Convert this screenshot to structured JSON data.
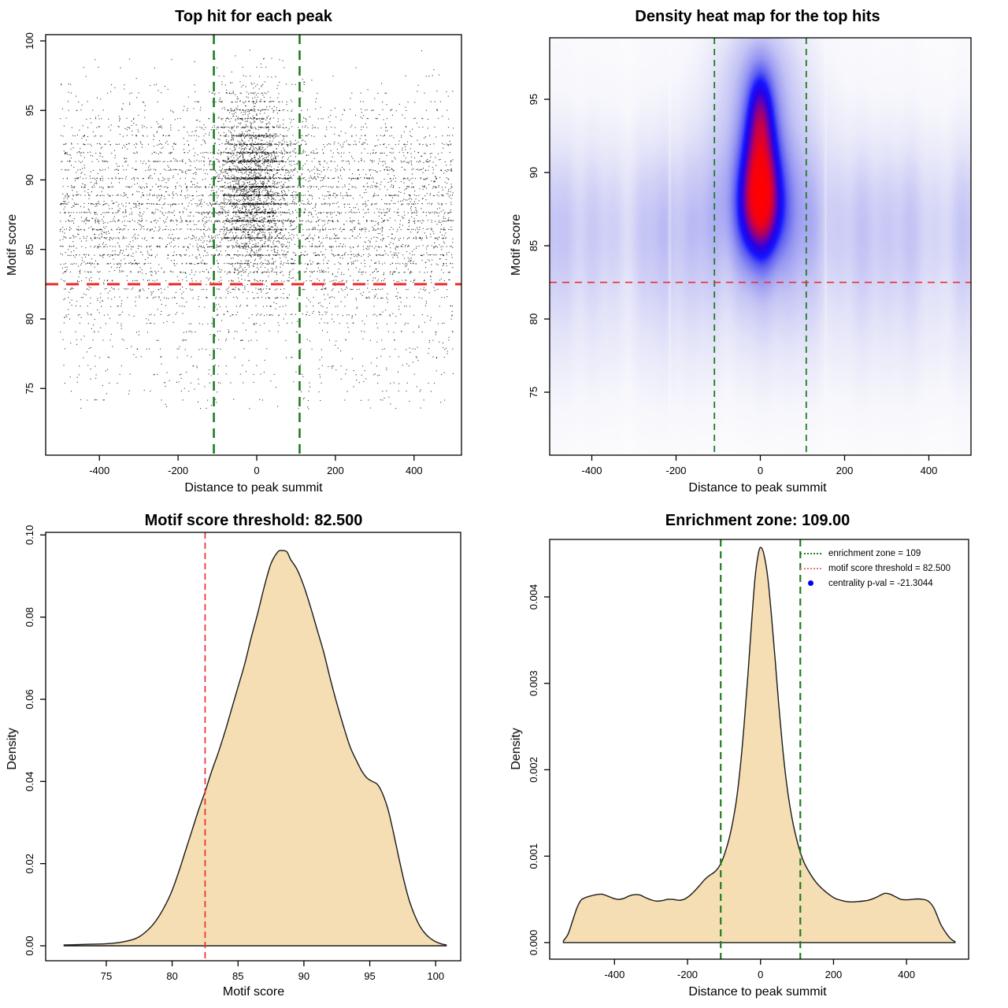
{
  "page": {
    "background": "#ffffff"
  },
  "chart_data": [
    {
      "type": "scatter",
      "title": "Top hit for each peak",
      "xlabel": "Distance to peak summit",
      "ylabel": "Motif score",
      "xlim": [
        -536.6,
        520.5
      ],
      "ylim": [
        70.2,
        100.45
      ],
      "xtick_labels": [
        "-400",
        "-200",
        "0",
        "200",
        "400"
      ],
      "ytick_labels": [
        "75",
        "80",
        "85",
        "90",
        "95",
        "100"
      ],
      "box": {
        "L": 58,
        "T": 44,
        "R": 586,
        "B": 578
      },
      "point_color": "#000000",
      "vlines": [
        {
          "x": -109,
          "color": "#1f7d1f",
          "width": 2.6,
          "dash": [
            12,
            8
          ]
        },
        {
          "x": 109,
          "color": "#1f7d1f",
          "width": 2.6,
          "dash": [
            12,
            8
          ]
        }
      ],
      "hlines": [
        {
          "y": 82.5,
          "color": "#ee2c2c",
          "width": 3,
          "dash": [
            16,
            10
          ]
        }
      ],
      "points_model": {
        "seed": 20240601,
        "n_center": 3300,
        "center": {
          "x_mean": -6,
          "x_sd": 48,
          "y_mean": 90.2,
          "y_sd": 3.0,
          "y2_mean": 87.2,
          "y2_sd": 2.4,
          "y2_frac": 0.15
        },
        "n_background": 5600,
        "background": {
          "x_range": [
            -500,
            500
          ],
          "y_main": [
            86.9,
            3.5
          ],
          "y_main_frac": 0.78,
          "y_upper": [
            92.3,
            2.6
          ],
          "y_upper_frac": 0.14,
          "y_low_range": [
            73.5,
            82
          ]
        },
        "score_quantize_step": 0.613,
        "quantize_frac": 0.55,
        "y_clip": [
          72.3,
          99.35
        ]
      }
    },
    {
      "type": "heatmap_density",
      "title": "Density heat map for the top hits",
      "xlabel": "Distance to peak summit",
      "ylabel": "Motif score",
      "xlim": [
        -500,
        500
      ],
      "ylim": [
        70.7,
        99.2
      ],
      "xtick_labels": [
        "-400",
        "-200",
        "0",
        "200",
        "400"
      ],
      "ytick_labels": [
        "75",
        "80",
        "85",
        "90",
        "95"
      ],
      "box": {
        "L": 58,
        "T": 48,
        "R": 593,
        "B": 578
      },
      "vlines": [
        {
          "x": -109,
          "color": "#1f7d1f",
          "width": 1.8,
          "dash": [
            8,
            6
          ]
        },
        {
          "x": 109,
          "color": "#1f7d1f",
          "width": 1.8,
          "dash": [
            8,
            6
          ]
        }
      ],
      "hlines": [
        {
          "y": 82.5,
          "color": "#ee2c2c",
          "width": 1.6,
          "dash": [
            9,
            7
          ]
        }
      ],
      "density_components": [
        {
          "kind": "blob",
          "x_mean": 0,
          "x_sd": 27,
          "y_mean": 90.4,
          "y_sd": 3.0,
          "amp": 1.0
        },
        {
          "kind": "blob",
          "x_mean": 0,
          "x_sd": 34,
          "y_mean": 87.5,
          "y_sd": 2.1,
          "amp": 0.72
        },
        {
          "kind": "blob",
          "x_mean": 0,
          "x_sd": 18,
          "y_mean": 94.3,
          "y_sd": 1.8,
          "amp": 0.4
        },
        {
          "kind": "blob",
          "x_mean": 0,
          "x_sd": 75,
          "y_mean": 89.3,
          "y_sd": 4.8,
          "amp": 0.28
        },
        {
          "kind": "blob",
          "x_mean": 0,
          "x_sd": 50,
          "y_mean": 96.8,
          "y_sd": 2.4,
          "amp": 0.14
        },
        {
          "kind": "band",
          "y_mean": 86.4,
          "y_sd": 3.4,
          "amp": 0.105
        },
        {
          "kind": "band",
          "y_mean": 80.6,
          "y_sd": 3.4,
          "amp": 0.03
        },
        {
          "kind": "band",
          "y_mean": 87.0,
          "y_sd": 9.0,
          "amp": 0.006
        }
      ],
      "band_ripple": [
        [
          41,
          0.2,
          0.3
        ],
        [
          19.5,
          0.16,
          2.0
        ],
        [
          9.3,
          0.12,
          0.7
        ],
        [
          61,
          0.1,
          -1.2
        ]
      ],
      "white_stripes": [
        {
          "x": -215,
          "sd": 2.0,
          "amp": 0.55
        },
        {
          "x": 155,
          "sd": 2.0,
          "amp": 0.5
        }
      ],
      "gamma": 0.5,
      "colormap": [
        [
          0.0,
          255,
          255,
          255
        ],
        [
          0.06,
          247,
          247,
          252
        ],
        [
          0.16,
          228,
          228,
          249
        ],
        [
          0.28,
          196,
          196,
          245
        ],
        [
          0.4,
          148,
          148,
          242
        ],
        [
          0.5,
          92,
          92,
          242
        ],
        [
          0.58,
          20,
          20,
          255
        ],
        [
          0.66,
          40,
          0,
          230
        ],
        [
          0.74,
          120,
          0,
          160
        ],
        [
          0.82,
          200,
          0,
          70
        ],
        [
          0.9,
          245,
          0,
          15
        ],
        [
          1.0,
          255,
          0,
          0
        ]
      ]
    },
    {
      "type": "area",
      "title": "Motif score threshold: 82.500",
      "xlabel": "Motif score",
      "ylabel": "Density",
      "xlim": [
        70.4,
        101.9
      ],
      "ylim": [
        -0.00364,
        0.10063
      ],
      "xtick_labels": [
        "75",
        "80",
        "85",
        "90",
        "95",
        "100"
      ],
      "ytick_labels": [
        "0.00",
        "0.02",
        "0.04",
        "0.06",
        "0.08",
        "0.10"
      ],
      "box": {
        "L": 58,
        "T": 36,
        "R": 585,
        "B": 580
      },
      "fill": "#f5deb3",
      "stroke": "#1a1a1a",
      "vlines": [
        {
          "x": 82.5,
          "color": "#ee2c2c",
          "width": 1.7,
          "dash": [
            8,
            5
          ]
        }
      ],
      "hlines": [],
      "curve": [
        [
          71.8,
          0.0002
        ],
        [
          73.0,
          0.0003
        ],
        [
          74.0,
          0.0004
        ],
        [
          75.0,
          0.0005
        ],
        [
          76.0,
          0.0008
        ],
        [
          77.0,
          0.0015
        ],
        [
          77.5,
          0.0022
        ],
        [
          78.0,
          0.0034
        ],
        [
          78.5,
          0.005
        ],
        [
          79.0,
          0.0072
        ],
        [
          79.5,
          0.01
        ],
        [
          80.0,
          0.0135
        ],
        [
          80.5,
          0.018
        ],
        [
          81.0,
          0.023
        ],
        [
          81.5,
          0.028
        ],
        [
          82.0,
          0.033
        ],
        [
          82.5,
          0.0375
        ],
        [
          83.0,
          0.0425
        ],
        [
          83.5,
          0.047
        ],
        [
          84.0,
          0.052
        ],
        [
          84.5,
          0.0575
        ],
        [
          85.0,
          0.063
        ],
        [
          85.5,
          0.0685
        ],
        [
          86.0,
          0.075
        ],
        [
          86.5,
          0.081
        ],
        [
          87.0,
          0.0875
        ],
        [
          87.5,
          0.093
        ],
        [
          88.0,
          0.0958
        ],
        [
          88.3,
          0.0962
        ],
        [
          88.7,
          0.0959
        ],
        [
          89.0,
          0.094
        ],
        [
          89.5,
          0.0915
        ],
        [
          90.0,
          0.0875
        ],
        [
          90.5,
          0.0825
        ],
        [
          91.0,
          0.077
        ],
        [
          91.5,
          0.0715
        ],
        [
          92.0,
          0.065
        ],
        [
          92.5,
          0.059
        ],
        [
          93.0,
          0.0535
        ],
        [
          93.5,
          0.0485
        ],
        [
          94.0,
          0.045
        ],
        [
          94.4,
          0.0425
        ],
        [
          94.8,
          0.0408
        ],
        [
          95.2,
          0.04
        ],
        [
          95.6,
          0.0392
        ],
        [
          96.0,
          0.0368
        ],
        [
          96.4,
          0.033
        ],
        [
          96.8,
          0.0275
        ],
        [
          97.2,
          0.0215
        ],
        [
          97.6,
          0.0158
        ],
        [
          98.0,
          0.011
        ],
        [
          98.4,
          0.0075
        ],
        [
          98.8,
          0.0048
        ],
        [
          99.2,
          0.003
        ],
        [
          99.6,
          0.0018
        ],
        [
          100.0,
          0.001
        ],
        [
          100.4,
          0.0005
        ],
        [
          100.8,
          0.0002
        ]
      ]
    },
    {
      "type": "area",
      "title": "Enrichment zone: 109.00",
      "xlabel": "Distance to peak summit",
      "ylabel": "Density",
      "xlim": [
        -577.6,
        570.1
      ],
      "ylim": [
        -0.000192,
        0.004665
      ],
      "xtick_labels": [
        "-400",
        "-200",
        "0",
        "200",
        "400"
      ],
      "ytick_labels": [
        "0.000",
        "0.001",
        "0.002",
        "0.003",
        "0.004"
      ],
      "box": {
        "L": 58,
        "T": 45,
        "R": 590,
        "B": 578
      },
      "fill": "#f5deb3",
      "stroke": "#1a1a1a",
      "vlines": [
        {
          "x": -109,
          "color": "#1f7d1f",
          "width": 2.2,
          "dash": [
            9,
            6
          ]
        },
        {
          "x": 109,
          "color": "#1f7d1f",
          "width": 2.2,
          "dash": [
            9,
            6
          ]
        }
      ],
      "hlines": [],
      "curve": [
        [
          -540,
          2e-05
        ],
        [
          -527,
          0.0001
        ],
        [
          -515,
          0.00025
        ],
        [
          -503,
          0.0004
        ],
        [
          -492,
          0.00049
        ],
        [
          -480,
          0.00052
        ],
        [
          -465,
          0.00054
        ],
        [
          -450,
          0.000555
        ],
        [
          -435,
          0.00056
        ],
        [
          -420,
          0.00054
        ],
        [
          -405,
          0.000515
        ],
        [
          -390,
          0.0005
        ],
        [
          -375,
          0.00051
        ],
        [
          -360,
          0.00054
        ],
        [
          -345,
          0.000555
        ],
        [
          -330,
          0.00055
        ],
        [
          -315,
          0.00052
        ],
        [
          -300,
          0.000495
        ],
        [
          -285,
          0.00048
        ],
        [
          -270,
          0.000485
        ],
        [
          -255,
          0.0005
        ],
        [
          -240,
          0.0005
        ],
        [
          -225,
          0.00049
        ],
        [
          -210,
          0.0005
        ],
        [
          -195,
          0.00054
        ],
        [
          -180,
          0.0006
        ],
        [
          -165,
          0.00067
        ],
        [
          -155,
          0.00072
        ],
        [
          -145,
          0.00076
        ],
        [
          -135,
          0.00079
        ],
        [
          -125,
          0.00082
        ],
        [
          -115,
          0.00087
        ],
        [
          -105,
          0.00095
        ],
        [
          -95,
          0.00107
        ],
        [
          -85,
          0.00122
        ],
        [
          -75,
          0.00142
        ],
        [
          -65,
          0.00168
        ],
        [
          -55,
          0.00205
        ],
        [
          -45,
          0.00252
        ],
        [
          -35,
          0.00307
        ],
        [
          -25,
          0.00367
        ],
        [
          -15,
          0.00422
        ],
        [
          -5,
          0.00452
        ],
        [
          2,
          0.00457
        ],
        [
          10,
          0.00448
        ],
        [
          20,
          0.00422
        ],
        [
          30,
          0.00378
        ],
        [
          40,
          0.00328
        ],
        [
          50,
          0.00275
        ],
        [
          60,
          0.00228
        ],
        [
          70,
          0.00189
        ],
        [
          80,
          0.00159
        ],
        [
          90,
          0.00136
        ],
        [
          100,
          0.00118
        ],
        [
          110,
          0.00103
        ],
        [
          120,
          0.00092
        ],
        [
          130,
          0.00084
        ],
        [
          140,
          0.00077
        ],
        [
          150,
          0.00071
        ],
        [
          160,
          0.00066
        ],
        [
          175,
          0.0006
        ],
        [
          190,
          0.00055
        ],
        [
          205,
          0.00051
        ],
        [
          220,
          0.00049
        ],
        [
          235,
          0.000475
        ],
        [
          250,
          0.00047
        ],
        [
          265,
          0.000475
        ],
        [
          280,
          0.00048
        ],
        [
          295,
          0.00049
        ],
        [
          310,
          0.00051
        ],
        [
          325,
          0.00054
        ],
        [
          340,
          0.00057
        ],
        [
          355,
          0.00056
        ],
        [
          370,
          0.00053
        ],
        [
          385,
          0.0005
        ],
        [
          400,
          0.000495
        ],
        [
          415,
          0.0005
        ],
        [
          430,
          0.000505
        ],
        [
          445,
          0.0005
        ],
        [
          455,
          0.00049
        ],
        [
          465,
          0.00046
        ],
        [
          475,
          0.0004
        ],
        [
          485,
          0.0003
        ],
        [
          495,
          0.0002
        ],
        [
          510,
          0.0001
        ],
        [
          522,
          4e-05
        ],
        [
          533,
          1e-05
        ]
      ],
      "legend": {
        "items": [
          {
            "swatch": "dotted-line",
            "color": "#1f7d1f",
            "label": "enrichment zone = 109"
          },
          {
            "swatch": "dotted-line",
            "color": "#f07070",
            "label": "motif score threshold = 82.500"
          },
          {
            "swatch": "dot",
            "color": "#0000ee",
            "label": "centrality p-val = -21.3044"
          }
        ]
      }
    }
  ]
}
